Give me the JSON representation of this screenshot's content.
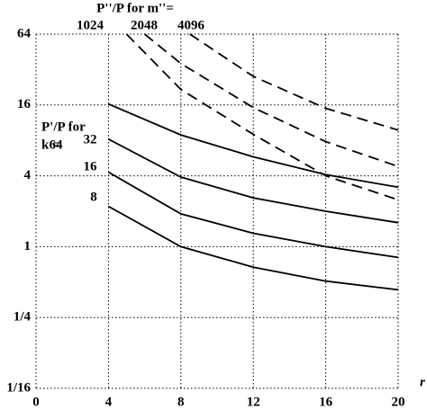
{
  "chart_data": {
    "type": "line",
    "m_header": "P''/P for m''=",
    "k_header_line1": "P'/P for",
    "k_header_line2": "k =",
    "xlabel": "r",
    "xlim": [
      0,
      20
    ],
    "xticks": [
      0,
      4,
      8,
      12,
      16,
      20
    ],
    "ylim": [
      0.0625,
      64
    ],
    "log_base": 4,
    "yticks": [
      {
        "value": 0.0625,
        "label": "1/16"
      },
      {
        "value": 0.25,
        "label": "1/4"
      },
      1,
      4,
      16,
      64
    ],
    "grid": true,
    "series": [
      {
        "name": "64",
        "group": "k",
        "dashed": false,
        "color": "#000000",
        "x": [
          4,
          8,
          12,
          16,
          20
        ],
        "values": [
          16.3,
          8.9,
          5.8,
          4.1,
          3.2
        ]
      },
      {
        "name": "32",
        "group": "k",
        "dashed": false,
        "color": "#000000",
        "x": [
          4,
          8,
          12,
          16,
          20
        ],
        "values": [
          8.2,
          3.9,
          2.6,
          2.0,
          1.6
        ]
      },
      {
        "name": "16",
        "group": "k",
        "dashed": false,
        "color": "#000000",
        "x": [
          4,
          8,
          12,
          16,
          20
        ],
        "values": [
          4.3,
          1.9,
          1.3,
          1.0,
          0.81
        ]
      },
      {
        "name": "8",
        "group": "k",
        "dashed": false,
        "color": "#000000",
        "x": [
          4,
          8,
          12,
          16,
          20
        ],
        "values": [
          2.2,
          1.0,
          0.67,
          0.51,
          0.43
        ]
      },
      {
        "name": "1024",
        "group": "m",
        "dashed": true,
        "color": "#000000",
        "x": [
          5,
          8,
          12,
          16,
          20
        ],
        "values": [
          64,
          21.7,
          9.0,
          4.0,
          2.5
        ]
      },
      {
        "name": "2048",
        "group": "m",
        "dashed": true,
        "color": "#000000",
        "x": [
          6,
          8,
          12,
          16,
          20
        ],
        "values": [
          64,
          36,
          15.2,
          7.8,
          4.8
        ]
      },
      {
        "name": "4096",
        "group": "m",
        "dashed": true,
        "color": "#000000",
        "x": [
          8.5,
          12,
          16,
          20
        ],
        "values": [
          64,
          28,
          15,
          9.8
        ]
      }
    ]
  }
}
